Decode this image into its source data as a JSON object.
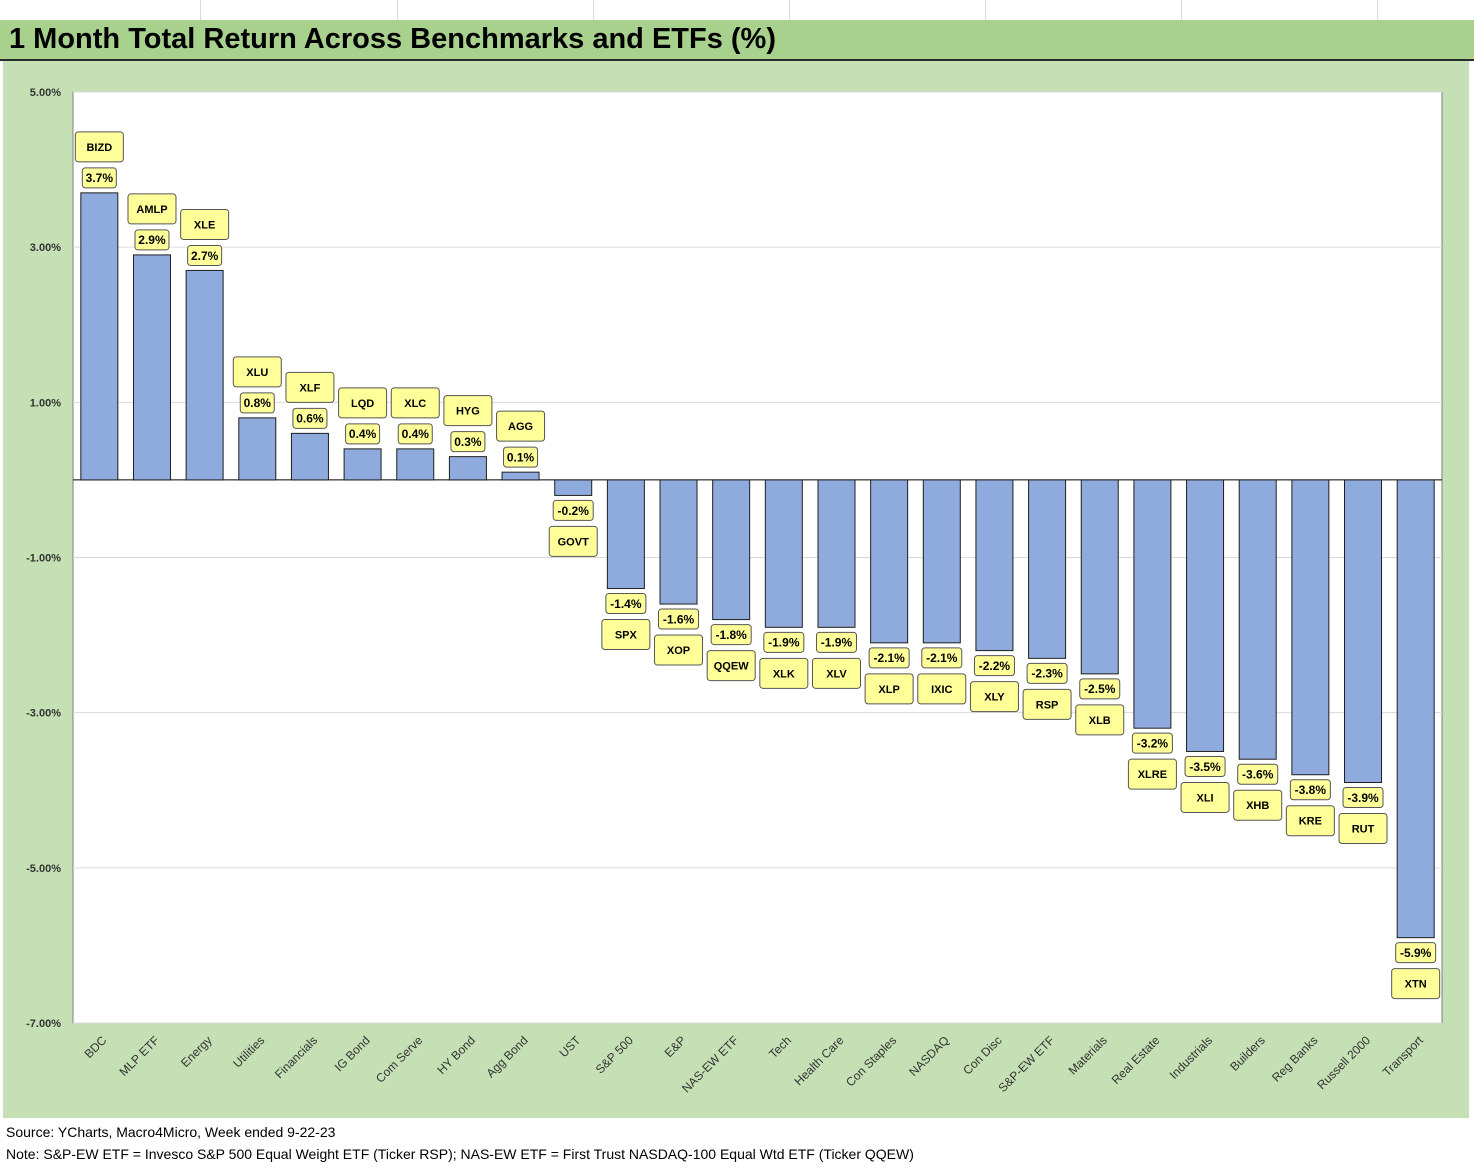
{
  "title": "1 Month Total Return Across Benchmarks and ETFs (%)",
  "footer": {
    "source": "Source: YCharts, Macro4Micro, Week ended 9-22-23",
    "note": "Note: S&P-EW ETF = Invesco S&P 500 Equal Weight ETF (Ticker RSP); NAS-EW ETF = First Trust NASDAQ-100 Equal Wtd ETF (Ticker QQEW)"
  },
  "colors": {
    "bar": "#8faadc",
    "bar_outline": "#1f1f1f",
    "label_fill": "#ffff99",
    "background": "#c5e0b4",
    "title_bar": "#a9d18e"
  },
  "chart_data": {
    "type": "bar",
    "title": "1 Month Total Return Across Benchmarks and ETFs (%)",
    "categories": [
      "BDC",
      "MLP ETF",
      "Energy",
      "Utilities",
      "Financials",
      "IG Bond",
      "Com Serve",
      "HY Bond",
      "Agg Bond",
      "UST",
      "S&P 500",
      "E&P",
      "NAS-EW ETF",
      "Tech",
      "Health Care",
      "Con Staples",
      "NASDAQ",
      "Con Disc",
      "S&P-EW ETF",
      "Materials",
      "Real Estate",
      "Industrials",
      "Builders",
      "Reg Banks",
      "Russell 2000",
      "Transport"
    ],
    "tickers": [
      "BIZD",
      "AMLP",
      "XLE",
      "XLU",
      "XLF",
      "LQD",
      "XLC",
      "HYG",
      "AGG",
      "GOVT",
      "SPX",
      "XOP",
      "QQEW",
      "XLK",
      "XLV",
      "XLP",
      "IXIC",
      "XLY",
      "RSP",
      "XLB",
      "XLRE",
      "XLI",
      "XHB",
      "KRE",
      "RUT",
      "XTN"
    ],
    "values": [
      3.7,
      2.9,
      2.7,
      0.8,
      0.6,
      0.4,
      0.4,
      0.3,
      0.1,
      -0.2,
      -1.4,
      -1.6,
      -1.8,
      -1.9,
      -1.9,
      -2.1,
      -2.1,
      -2.2,
      -2.3,
      -2.5,
      -3.2,
      -3.5,
      -3.6,
      -3.8,
      -3.9,
      -5.9
    ],
    "value_labels": [
      "3.7%",
      "2.9%",
      "2.7%",
      "0.8%",
      "0.6%",
      "0.4%",
      "0.4%",
      "0.3%",
      "0.1%",
      "-0.2%",
      "-1.4%",
      "-1.6%",
      "-1.8%",
      "-1.9%",
      "-1.9%",
      "-2.1%",
      "-2.1%",
      "-2.2%",
      "-2.3%",
      "-2.5%",
      "-3.2%",
      "-3.5%",
      "-3.6%",
      "-3.8%",
      "-3.9%",
      "-5.9%"
    ],
    "y_ticks": [
      5,
      3,
      1,
      -1,
      -3,
      -5,
      -7
    ],
    "y_tick_labels": [
      "5.00%",
      "3.00%",
      "1.00%",
      "-1.00%",
      "-3.00%",
      "-5.00%",
      "-7.00%"
    ],
    "ylim": [
      -7,
      5
    ],
    "xlabel": "",
    "ylabel": "",
    "grid": true,
    "legend": "none"
  }
}
